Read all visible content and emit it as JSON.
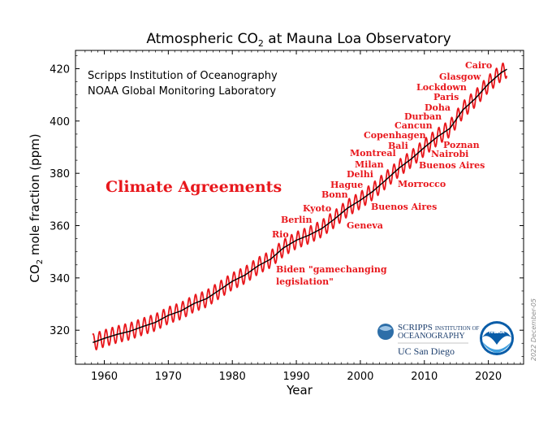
{
  "chart_data": {
    "type": "line",
    "title_main": "Atmospheric CO",
    "title_sub": "2",
    "title_rest": " at Mauna Loa Observatory",
    "xlabel": "Year",
    "ylabel_main": "CO",
    "ylabel_sub": "2",
    "ylabel_rest": " mole fraction (ppm)",
    "xlim": [
      1955.5,
      2025.5
    ],
    "ylim": [
      307,
      427
    ],
    "x_ticks": [
      1960,
      1970,
      1980,
      1990,
      2000,
      2010,
      2020
    ],
    "y_ticks": [
      320,
      340,
      360,
      380,
      400,
      420
    ],
    "grid": false,
    "sources": [
      "Scripps Institution of Oceanography",
      "NOAA Global Monitoring Laboratory"
    ],
    "series": [
      {
        "color": "#e8171c",
        "style": "seasonal-oscillation",
        "x": [
          1958.2,
          1960,
          1962,
          1964,
          1966,
          1968,
          1970,
          1972,
          1974,
          1976,
          1978,
          1980,
          1982,
          1984,
          1986,
          1988,
          1990,
          1992,
          1994,
          1996,
          1998,
          2000,
          2002,
          2004,
          2006,
          2008,
          2010,
          2012,
          2014,
          2016,
          2018,
          2020,
          2022,
          2022.9
        ],
        "amplitude_ppm": 3.2
      },
      {
        "color": "#000000",
        "style": "trend",
        "x": [
          1958.2,
          1960,
          1962,
          1964,
          1966,
          1968,
          1970,
          1972,
          1974,
          1976,
          1978,
          1980,
          1982,
          1984,
          1986,
          1988,
          1990,
          1992,
          1994,
          1996,
          1998,
          2000,
          2002,
          2004,
          2006,
          2008,
          2010,
          2012,
          2014,
          2016,
          2018,
          2020,
          2022,
          2022.9
        ],
        "y": [
          315.3,
          316.9,
          318.4,
          319.6,
          321.4,
          323.0,
          325.7,
          327.4,
          330.2,
          332.1,
          335.4,
          338.7,
          341.1,
          344.6,
          347.2,
          351.5,
          354.4,
          356.4,
          358.9,
          362.6,
          366.7,
          369.7,
          373.2,
          377.5,
          381.9,
          385.6,
          389.9,
          393.9,
          397.2,
          404.2,
          408.7,
          414.2,
          418.5,
          419.8
        ]
      }
    ],
    "annotation_title": "Climate Agreements",
    "annotations": [
      {
        "text": "Rio",
        "year": 1992
      },
      {
        "text": "Berlin",
        "year": 1995
      },
      {
        "text": "Kyoto",
        "year": 1997
      },
      {
        "text": "Bonn",
        "year": 1999
      },
      {
        "text": "Hague",
        "year": 2000
      },
      {
        "text": "Delhi",
        "year": 2002
      },
      {
        "text": "Milan",
        "year": 2003
      },
      {
        "text": "Montreal",
        "year": 2005
      },
      {
        "text": "Bali",
        "year": 2007
      },
      {
        "text": "Copenhagen",
        "year": 2009
      },
      {
        "text": "Cancun",
        "year": 2010
      },
      {
        "text": "Durban",
        "year": 2011
      },
      {
        "text": "Doha",
        "year": 2012
      },
      {
        "text": "Paris",
        "year": 2015
      },
      {
        "text": "Lockdown",
        "year": 2020
      },
      {
        "text": "Glasgow",
        "year": 2021
      },
      {
        "text": "Cairo",
        "year": 2022
      },
      {
        "text": "Geneva",
        "year": 1996
      },
      {
        "text": "Buenos Aires",
        "year": 1998
      },
      {
        "text": "Morrocco",
        "year": 2001
      },
      {
        "text": "Buenos Aires",
        "year": 2004
      },
      {
        "text": "Nairobi",
        "year": 2006
      },
      {
        "text": "Poznan",
        "year": 2008
      },
      {
        "text": "Biden \"gamechanging",
        "year": 2022
      },
      {
        "text": "legislation\"",
        "year": 2022
      }
    ],
    "logos": {
      "scripps_line1": "SCRIPPS",
      "scripps_line1b": "INSTITUTION OF",
      "scripps_line2": "OCEANOGRAPHY",
      "ucsd": "UC San Diego",
      "noaa": "NOAA"
    },
    "date_stamp": "2022 December-05"
  }
}
